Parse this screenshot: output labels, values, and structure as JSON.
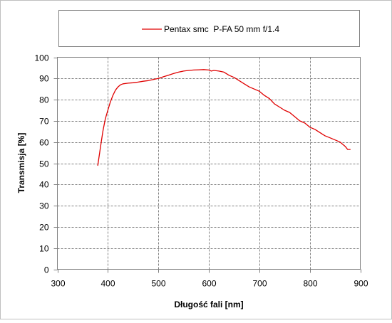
{
  "chart_data": {
    "type": "line",
    "xlabel": "Długość fali [nm]",
    "ylabel": "Transmisja [%]",
    "xlim": [
      300,
      900
    ],
    "ylim": [
      0,
      100
    ],
    "x_ticks": [
      300,
      400,
      500,
      600,
      700,
      800,
      900
    ],
    "y_ticks": [
      0,
      10,
      20,
      30,
      40,
      50,
      60,
      70,
      80,
      90,
      100
    ],
    "grid": true,
    "legend_position": "top",
    "series": [
      {
        "name": "Pentax smc  P-FA 50 mm f/1.4",
        "color": "#e00000",
        "x": [
          380,
          385,
          390,
          395,
          400,
          405,
          410,
          415,
          420,
          425,
          430,
          440,
          450,
          460,
          470,
          480,
          490,
          500,
          510,
          520,
          530,
          540,
          550,
          560,
          570,
          580,
          590,
          600,
          605,
          610,
          620,
          630,
          640,
          650,
          660,
          670,
          680,
          690,
          700,
          710,
          720,
          730,
          740,
          750,
          760,
          770,
          780,
          790,
          800,
          810,
          820,
          830,
          840,
          850,
          860,
          870,
          875,
          880
        ],
        "values": [
          49,
          57,
          65,
          71,
          75,
          79,
          82,
          84.5,
          86,
          87,
          87.5,
          87.8,
          88,
          88.3,
          88.7,
          89,
          89.5,
          90,
          90.8,
          91.5,
          92.3,
          93,
          93.5,
          93.8,
          94,
          94.1,
          94.2,
          94,
          93.5,
          93.8,
          93.5,
          93,
          91.5,
          90.5,
          89,
          87.5,
          86,
          85,
          84,
          82,
          80.5,
          78,
          76.5,
          75,
          74,
          72,
          70,
          69,
          67,
          66,
          64.5,
          63,
          62,
          61,
          60,
          58,
          56.5,
          56.5
        ]
      }
    ]
  }
}
